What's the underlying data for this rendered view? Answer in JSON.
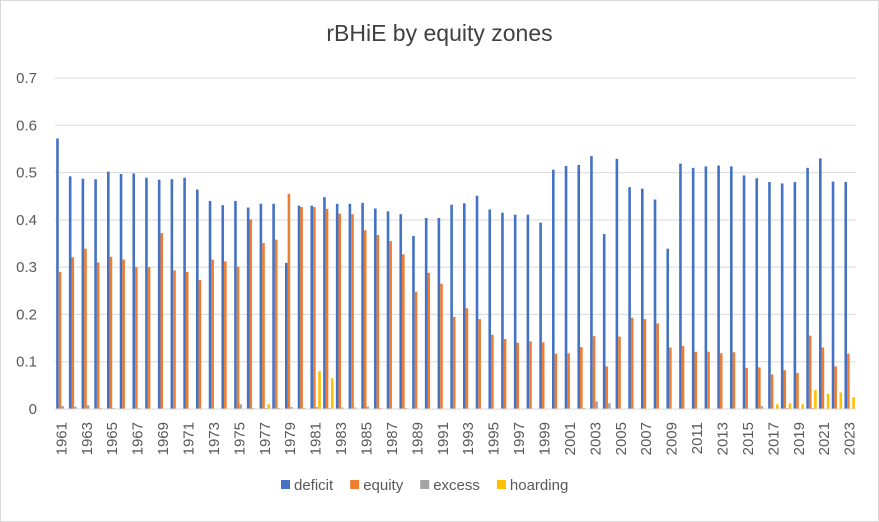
{
  "chart_data": {
    "type": "bar",
    "title": "rBHiE by equity zones",
    "xlabel": "",
    "ylabel": "",
    "ylim": [
      0,
      0.7
    ],
    "yticks": [
      "0",
      "0.1",
      "0.2",
      "0.3",
      "0.4",
      "0.5",
      "0.6",
      "0.7"
    ],
    "grid": true,
    "legend_position": "bottom",
    "categories": [
      "1961",
      "1962",
      "1963",
      "1964",
      "1965",
      "1966",
      "1967",
      "1968",
      "1969",
      "1970",
      "1971",
      "1972",
      "1973",
      "1974",
      "1975",
      "1976",
      "1977",
      "1978",
      "1979",
      "1980",
      "1981",
      "1982",
      "1983",
      "1984",
      "1985",
      "1986",
      "1987",
      "1988",
      "1989",
      "1990",
      "1991",
      "1992",
      "1993",
      "1994",
      "1995",
      "1996",
      "1997",
      "1998",
      "1999",
      "2000",
      "2001",
      "2002",
      "2003",
      "2004",
      "2005",
      "2006",
      "2007",
      "2008",
      "2009",
      "2010",
      "2011",
      "2012",
      "2013",
      "2014",
      "2015",
      "2016",
      "2017",
      "2018",
      "2019",
      "2020",
      "2021",
      "2022",
      "2023"
    ],
    "tick_labels": [
      "1961",
      "1963",
      "1965",
      "1967",
      "1969",
      "1971",
      "1973",
      "1975",
      "1977",
      "1979",
      "1981",
      "1983",
      "1985",
      "1987",
      "1989",
      "1991",
      "1993",
      "1995",
      "1997",
      "1999",
      "2001",
      "2003",
      "2005",
      "2007",
      "2009",
      "2011",
      "2013",
      "2015",
      "2017",
      "2019",
      "2021",
      "2023"
    ],
    "series": [
      {
        "name": "deficit",
        "color": "#4472c4",
        "values": [
          0.572,
          0.492,
          0.487,
          0.486,
          0.502,
          0.497,
          0.498,
          0.489,
          0.485,
          0.486,
          0.489,
          0.464,
          0.44,
          0.431,
          0.44,
          0.426,
          0.434,
          0.434,
          0.309,
          0.43,
          0.43,
          0.448,
          0.434,
          0.434,
          0.436,
          0.424,
          0.418,
          0.412,
          0.366,
          0.404,
          0.404,
          0.432,
          0.435,
          0.451,
          0.422,
          0.415,
          0.411,
          0.411,
          0.394,
          0.506,
          0.514,
          0.516,
          0.535,
          0.37,
          0.529,
          0.469,
          0.466,
          0.443,
          0.339,
          0.519,
          0.51,
          0.513,
          0.515,
          0.513,
          0.494,
          0.488,
          0.48,
          0.477,
          0.48,
          0.51,
          0.53,
          0.481,
          0.48
        ]
      },
      {
        "name": "equity",
        "color": "#ed7d31",
        "values": [
          0.29,
          0.321,
          0.339,
          0.31,
          0.322,
          0.316,
          0.3,
          0.3,
          0.372,
          0.293,
          0.29,
          0.273,
          0.316,
          0.312,
          0.301,
          0.401,
          0.351,
          0.358,
          0.455,
          0.427,
          0.427,
          0.423,
          0.413,
          0.412,
          0.378,
          0.368,
          0.355,
          0.327,
          0.248,
          0.288,
          0.265,
          0.195,
          0.213,
          0.19,
          0.157,
          0.148,
          0.14,
          0.143,
          0.141,
          0.117,
          0.118,
          0.131,
          0.154,
          0.09,
          0.153,
          0.193,
          0.19,
          0.181,
          0.13,
          0.133,
          0.121,
          0.121,
          0.118,
          0.12,
          0.087,
          0.088,
          0.073,
          0.082,
          0.076,
          0.155,
          0.13,
          0.09,
          0.117
        ]
      },
      {
        "name": "excess",
        "color": "#a5a5a5",
        "values": [
          0.006,
          0.005,
          0.008,
          0.002,
          0.002,
          0.001,
          0.002,
          0.001,
          0.001,
          0.001,
          0.001,
          0.001,
          0.001,
          0.001,
          0.01,
          0.002,
          0.002,
          0.002,
          0.004,
          0.002,
          0.004,
          0.002,
          0.003,
          0.003,
          0.005,
          0.002,
          0.001,
          0.002,
          0.001,
          0.001,
          0.001,
          0.001,
          0.001,
          0.001,
          0.001,
          0.001,
          0.001,
          0.001,
          0.001,
          0.001,
          0.001,
          0.002,
          0.016,
          0.012,
          0.001,
          0.001,
          0.001,
          0.001,
          0.001,
          0.001,
          0.001,
          0.001,
          0.001,
          0.001,
          0.001,
          0.006,
          0.001,
          0.002,
          0.001,
          0.002,
          0.001,
          0.001,
          0.001
        ]
      },
      {
        "name": "hoarding",
        "color": "#ffc000",
        "values": [
          0,
          0,
          0,
          0,
          0,
          0,
          0,
          0,
          0,
          0,
          0,
          0,
          0,
          0,
          0,
          0,
          0.01,
          0,
          0,
          0,
          0.08,
          0.065,
          0,
          0,
          0,
          0,
          0,
          0,
          0,
          0,
          0,
          0,
          0,
          0,
          0,
          0,
          0,
          0,
          0,
          0,
          0,
          0,
          0,
          0,
          0,
          0,
          0,
          0,
          0,
          0,
          0,
          0,
          0,
          0,
          0,
          0,
          0.01,
          0.012,
          0.01,
          0.04,
          0.032,
          0.035,
          0.025
        ]
      }
    ]
  }
}
